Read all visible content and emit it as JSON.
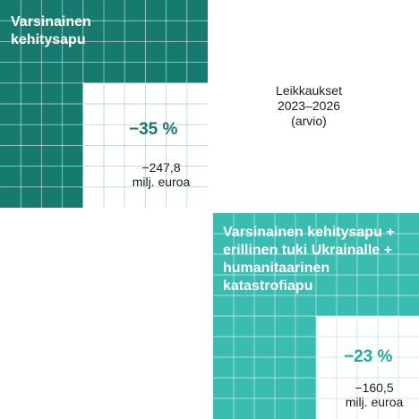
{
  "chart_data": {
    "type": "waffle",
    "caption": [
      "Leikkaukset",
      "2023–2026",
      "(arvio)"
    ],
    "panels": [
      {
        "title": [
          "Varsinainen",
          "kehitysapu"
        ],
        "change_label": "−35 %",
        "change_percent": -35,
        "amount_label": [
          "−247,8",
          "milj. euroa"
        ],
        "amount": -247.8,
        "unit": "milj. euroa",
        "fill_color": "#167a6e",
        "label_color": "#167a6e"
      },
      {
        "title": [
          "Varsinainen kehitysapu +",
          "erillinen tuki Ukrainalle +",
          "humanitaarinen",
          "katastrofiapu"
        ],
        "change_label": "−23 %",
        "change_percent": -23,
        "amount_label": [
          "−160,5",
          "milj. euroa"
        ],
        "amount": -160.5,
        "unit": "milj. euroa",
        "fill_color": "#3bbcb1",
        "label_color": "#2aa89d"
      }
    ]
  }
}
